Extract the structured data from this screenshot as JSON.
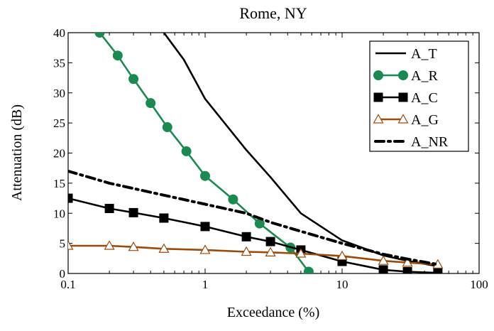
{
  "chart_data": {
    "type": "line",
    "title": "Rome, NY",
    "xlabel": "Exceedance (%)",
    "ylabel": "Attenuation (dB)",
    "xscale": "log",
    "xlim": [
      0.1,
      100
    ],
    "ylim": [
      0,
      40
    ],
    "x_ticks": [
      0.1,
      1,
      10,
      100
    ],
    "x_tick_labels": [
      "0.1",
      "1",
      "10",
      "100"
    ],
    "y_ticks": [
      0,
      5,
      10,
      15,
      20,
      25,
      30,
      35,
      40
    ],
    "y_tick_labels": [
      "0",
      "5",
      "10",
      "15",
      "20",
      "25",
      "30",
      "35",
      "40"
    ],
    "grid": false,
    "legend_position": "top-right",
    "series": [
      {
        "name": "A_T",
        "color": "#000000",
        "style": "solid",
        "marker": "none",
        "x": [
          0.5,
          0.7,
          1,
          2,
          3,
          5,
          10,
          20,
          30,
          50
        ],
        "y": [
          40.0,
          35.5,
          29.0,
          20.5,
          16.0,
          10.0,
          5.5,
          3.0,
          2.1,
          1.2
        ]
      },
      {
        "name": "A_R",
        "color": "#1a8a50",
        "style": "solid",
        "marker": "circle",
        "x": [
          0.17,
          0.23,
          0.3,
          0.4,
          0.53,
          0.73,
          1.0,
          1.6,
          2.5,
          4.2,
          5.7
        ],
        "y": [
          40.0,
          36.2,
          32.3,
          28.3,
          24.3,
          20.3,
          16.2,
          12.3,
          8.3,
          4.3,
          0.3
        ]
      },
      {
        "name": "A_C",
        "color": "#000000",
        "style": "solid",
        "marker": "square",
        "x": [
          0.1,
          0.2,
          0.3,
          0.5,
          1,
          2,
          3,
          5,
          10,
          20,
          30,
          50
        ],
        "y": [
          12.5,
          10.8,
          10.1,
          9.2,
          7.8,
          6.1,
          5.3,
          3.9,
          2.0,
          0.6,
          0.3,
          0.1
        ]
      },
      {
        "name": "A_G",
        "color": "#9c4a0a",
        "style": "solid",
        "marker": "triangle",
        "x": [
          0.1,
          0.2,
          0.3,
          0.5,
          1,
          2,
          3,
          5,
          10,
          20,
          30,
          50
        ],
        "y": [
          4.6,
          4.6,
          4.4,
          4.1,
          3.9,
          3.6,
          3.5,
          3.3,
          2.9,
          2.1,
          1.8,
          1.5
        ]
      },
      {
        "name": "A_NR",
        "color": "#000000",
        "style": "dash-dot",
        "marker": "none",
        "x": [
          0.1,
          0.2,
          0.5,
          1,
          2,
          3,
          5,
          10,
          20,
          30,
          50
        ],
        "y": [
          17.0,
          15.0,
          13.0,
          11.5,
          10.0,
          8.5,
          7.0,
          5.0,
          3.2,
          2.4,
          1.5
        ]
      }
    ]
  }
}
